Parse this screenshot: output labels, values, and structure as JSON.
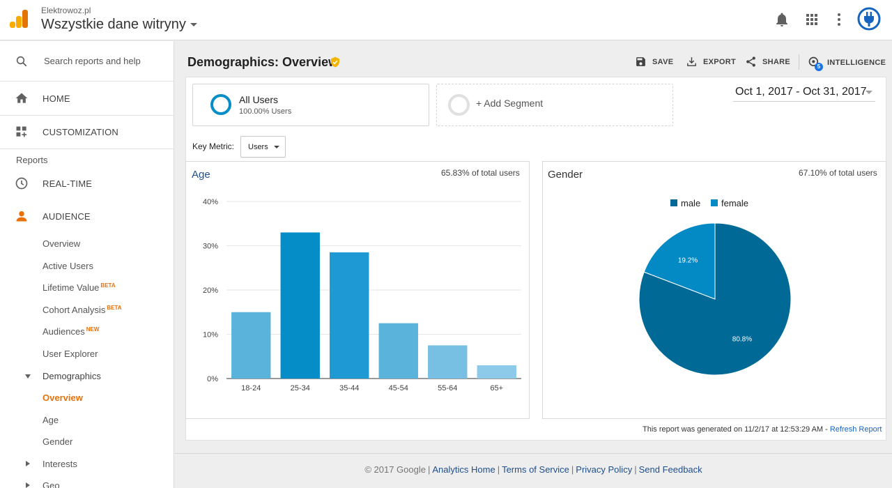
{
  "header": {
    "account": "Elektrowoz.pl",
    "property": "Wszystkie dane witryny"
  },
  "sidebar": {
    "search_placeholder": "Search reports and help",
    "home": "HOME",
    "customization": "CUSTOMIZATION",
    "reports_label": "Reports",
    "realtime": "REAL-TIME",
    "audience": "AUDIENCE",
    "sub_items": {
      "overview": "Overview",
      "active_users": "Active Users",
      "lifetime_value": "Lifetime Value",
      "lifetime_badge": "BETA",
      "cohort_analysis": "Cohort Analysis",
      "cohort_badge": "BETA",
      "audiences": "Audiences",
      "audiences_badge": "NEW",
      "user_explorer": "User Explorer",
      "demographics": "Demographics",
      "demo_overview": "Overview",
      "age": "Age",
      "gender": "Gender",
      "interests": "Interests",
      "geo": "Geo"
    }
  },
  "main": {
    "title": "Demographics: Overview",
    "actions": {
      "save": "SAVE",
      "export": "EXPORT",
      "share": "SHARE",
      "intelligence": "INTELLIGENCE",
      "intelligence_count": "5"
    },
    "segment_all": {
      "name": "All Users",
      "pct": "100.00% Users"
    },
    "add_segment": "+ Add Segment",
    "date_range": "Oct 1, 2017 - Oct 31, 2017",
    "key_metric_label": "Key Metric:",
    "key_metric_value": "Users",
    "age_card": {
      "title": "Age",
      "pct": "65.83% of total users"
    },
    "gender_card": {
      "title": "Gender",
      "pct": "67.10% of total users"
    },
    "report_generated": "This report was generated on 11/2/17 at 12:53:29 AM -",
    "refresh": "Refresh Report"
  },
  "footer": {
    "copyright": "© 2017 Google",
    "analytics_home": "Analytics Home",
    "terms": "Terms of Service",
    "privacy": "Privacy Policy",
    "feedback": "Send Feedback"
  },
  "colors": {
    "accent": "#e8710a",
    "brand_blue": "#058dc7",
    "age_bars": [
      "#5ab3db",
      "#058dc7",
      "#1e99d3",
      "#5ab3db",
      "#77c0e3",
      "#8dcaea"
    ],
    "male": "#006996",
    "female": "#0389c4"
  },
  "chart_data": [
    {
      "type": "bar",
      "title": "Age",
      "categories": [
        "18-24",
        "25-34",
        "35-44",
        "45-54",
        "55-64",
        "65+"
      ],
      "values": [
        15,
        33,
        28.5,
        12.5,
        7.5,
        3
      ],
      "yticks": [
        "0%",
        "10%",
        "20%",
        "30%",
        "40%"
      ],
      "ylim": [
        0,
        40
      ],
      "grid": true
    },
    {
      "type": "pie",
      "title": "Gender",
      "series": [
        {
          "name": "male",
          "value": 80.8,
          "label": "80.8%"
        },
        {
          "name": "female",
          "value": 19.2,
          "label": "19.2%"
        }
      ],
      "legend": "top"
    }
  ]
}
